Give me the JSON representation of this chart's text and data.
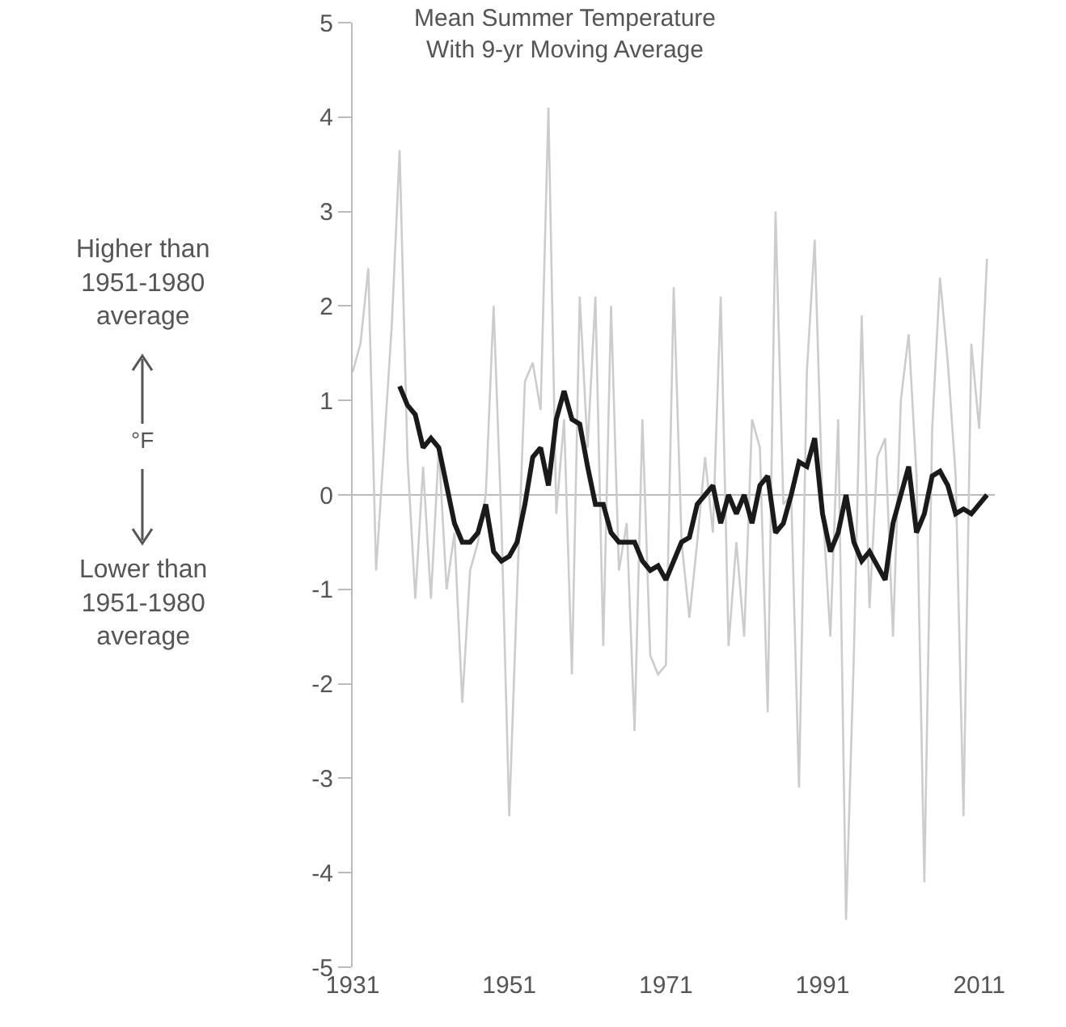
{
  "chart_data": {
    "type": "line",
    "title": "Mean Summer Temperature\nWith 9-yr Moving Average",
    "annotations": [
      "Higher than\n1951-1980\naverage",
      "°F",
      "Lower than\n1951-1980\naverage"
    ],
    "xlim": [
      1931,
      2013
    ],
    "xticks": [
      1931,
      1951,
      1971,
      1991,
      2011
    ],
    "ylim": [
      -5,
      5
    ],
    "yticks": [
      -5,
      -4,
      -3,
      -2,
      -1,
      0,
      1,
      2,
      3,
      4,
      5
    ],
    "ref_lines": [
      {
        "axis": "y",
        "value": 0,
        "color": "#bbbbbb"
      }
    ],
    "series": [
      {
        "color": "#cccccc",
        "x": [
          1931,
          1932,
          1933,
          1934,
          1935,
          1936,
          1937,
          1938,
          1939,
          1940,
          1941,
          1942,
          1943,
          1944,
          1945,
          1946,
          1947,
          1948,
          1949,
          1950,
          1951,
          1952,
          1953,
          1954,
          1955,
          1956,
          1957,
          1958,
          1959,
          1960,
          1961,
          1962,
          1963,
          1964,
          1965,
          1966,
          1967,
          1968,
          1969,
          1970,
          1971,
          1972,
          1973,
          1974,
          1975,
          1976,
          1977,
          1978,
          1979,
          1980,
          1981,
          1982,
          1983,
          1984,
          1985,
          1986,
          1987,
          1988,
          1989,
          1990,
          1991,
          1992,
          1993,
          1994,
          1995,
          1996,
          1997,
          1998,
          1999,
          2000,
          2001,
          2002,
          2003,
          2004,
          2005,
          2006,
          2007,
          2008,
          2009,
          2010,
          2011,
          2012
        ],
        "values": [
          1.3,
          1.6,
          2.4,
          -0.8,
          0.5,
          1.8,
          3.65,
          0.4,
          -1.1,
          0.3,
          -1.1,
          0.5,
          -1.0,
          -0.4,
          -2.2,
          -0.8,
          -0.5,
          0.0,
          2.0,
          -0.3,
          -3.4,
          -1.0,
          1.2,
          1.4,
          0.9,
          4.1,
          -0.2,
          0.8,
          -1.9,
          2.1,
          0.5,
          2.1,
          -1.6,
          2.0,
          -0.8,
          -0.3,
          -2.5,
          0.8,
          -1.7,
          -1.9,
          -1.8,
          2.2,
          -0.5,
          -1.3,
          -0.5,
          0.4,
          -0.4,
          2.1,
          -1.6,
          -0.5,
          -1.5,
          0.8,
          0.5,
          -2.3,
          3.0,
          -0.1,
          0.0,
          -3.1,
          1.3,
          2.7,
          -0.1,
          -1.5,
          0.8,
          -4.5,
          -1.7,
          1.9,
          -1.2,
          0.4,
          0.6,
          -1.5,
          1.0,
          1.7,
          0.2,
          -4.1,
          0.7,
          2.3,
          1.4,
          0.2,
          -3.4,
          1.6,
          0.7,
          2.5
        ]
      },
      {
        "color": "#1a1a1a",
        "x": [
          1937,
          1938,
          1939,
          1940,
          1941,
          1942,
          1943,
          1944,
          1945,
          1946,
          1947,
          1948,
          1949,
          1950,
          1951,
          1952,
          1953,
          1954,
          1955,
          1956,
          1957,
          1958,
          1959,
          1960,
          1961,
          1962,
          1963,
          1964,
          1965,
          1966,
          1967,
          1968,
          1969,
          1970,
          1971,
          1972,
          1973,
          1974,
          1975,
          1976,
          1977,
          1978,
          1979,
          1980,
          1981,
          1982,
          1983,
          1984,
          1985,
          1986,
          1987,
          1988,
          1989,
          1990,
          1991,
          1992,
          1993,
          1994,
          1995,
          1996,
          1997,
          1998,
          1999,
          2000,
          2001,
          2002,
          2003,
          2004,
          2005,
          2006,
          2007,
          2008,
          2009,
          2010,
          2011,
          2012
        ],
        "values": [
          1.15,
          0.95,
          0.85,
          0.5,
          0.6,
          0.5,
          0.1,
          -0.3,
          -0.5,
          -0.5,
          -0.4,
          -0.1,
          -0.6,
          -0.7,
          -0.65,
          -0.5,
          -0.1,
          0.4,
          0.5,
          0.1,
          0.8,
          1.1,
          0.8,
          0.75,
          0.3,
          -0.1,
          -0.1,
          -0.4,
          -0.5,
          -0.5,
          -0.5,
          -0.7,
          -0.8,
          -0.75,
          -0.9,
          -0.7,
          -0.5,
          -0.45,
          -0.1,
          0.0,
          0.1,
          -0.3,
          0.0,
          -0.2,
          0.0,
          -0.3,
          0.1,
          0.2,
          -0.4,
          -0.3,
          0.0,
          0.35,
          0.3,
          0.6,
          -0.2,
          -0.6,
          -0.4,
          0.0,
          -0.5,
          -0.7,
          -0.6,
          -0.75,
          -0.9,
          -0.3,
          0.0,
          0.3,
          -0.4,
          -0.2,
          0.2,
          0.25,
          0.1,
          -0.2,
          -0.15,
          -0.2,
          -0.1,
          0.0
        ]
      }
    ]
  }
}
